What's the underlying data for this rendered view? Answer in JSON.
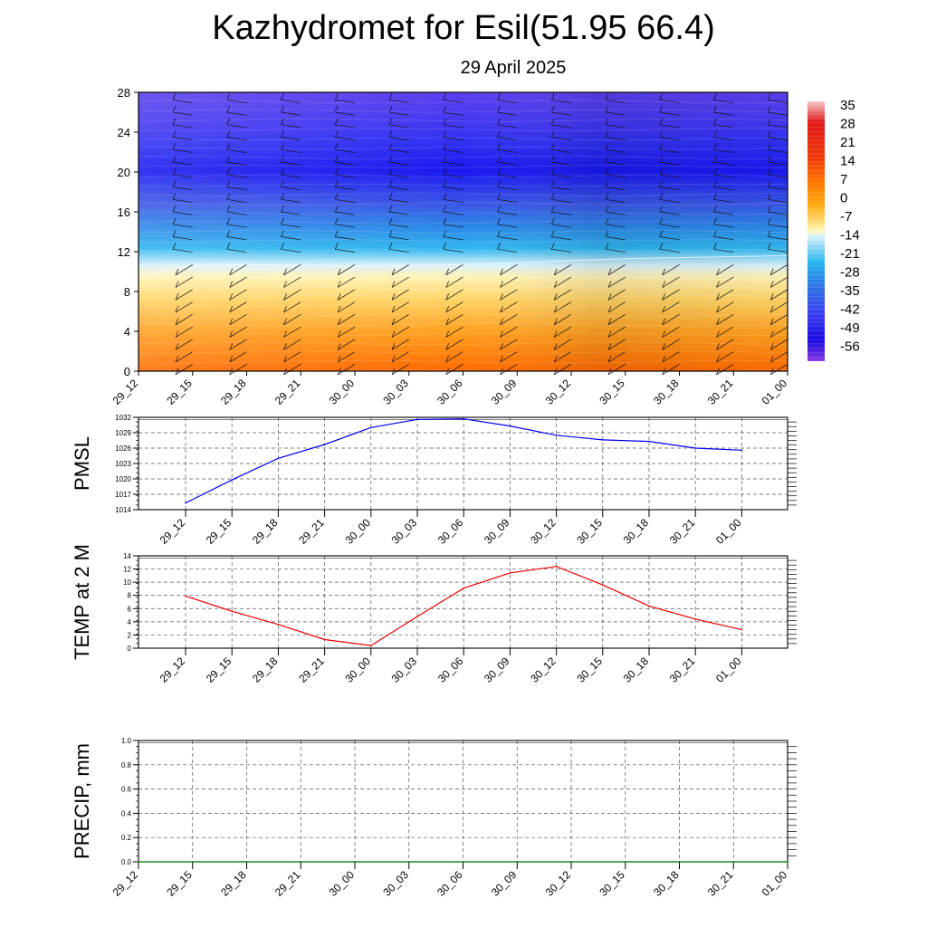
{
  "title": "Kazhydromet for Esil(51.95 66.4)",
  "subtitle": "29 April 2025",
  "colors": {
    "pmsl_line": "#0000ee",
    "temp_line": "#ee0000",
    "precip_line": "#008000",
    "grid": "#555555"
  },
  "chart_data": [
    {
      "type": "heatmap",
      "title": "",
      "ylabel": "",
      "ylim": [
        0,
        28
      ],
      "yticks": [
        0,
        4,
        8,
        12,
        16,
        20,
        24,
        28
      ],
      "x": [
        "29_12",
        "29_15",
        "29_18",
        "29_21",
        "30_00",
        "30_03",
        "30_06",
        "30_09",
        "30_12",
        "30_15",
        "30_18",
        "30_21",
        "01_00"
      ],
      "freezing_level": [
        9.6,
        10.6,
        10.7,
        10.6,
        10.5,
        10.6,
        10.7,
        10.9,
        11.1,
        11.3,
        11.4,
        11.5,
        11.6
      ],
      "colorbar": {
        "labels": [
          "35",
          "28",
          "21",
          "14",
          "7",
          "0",
          "-7",
          "-14",
          "-21",
          "-28",
          "-35",
          "-42",
          "-49",
          "-56"
        ],
        "stops": [
          "#f9c6c6",
          "#e71a1a",
          "#f03a0a",
          "#ff6a00",
          "#ffa50a",
          "#ffd060",
          "#fff6c0",
          "#d8f0fa",
          "#29b8ef",
          "#2e7ee8",
          "#3b52e8",
          "#2a1ef0",
          "#1a08e0",
          "#8a2be2"
        ]
      },
      "grid": false
    },
    {
      "type": "line",
      "ylabel": "PMSL",
      "ylim": [
        1014,
        1032
      ],
      "yticks": [
        1014,
        1017,
        1020,
        1023,
        1026,
        1029,
        1032
      ],
      "x": [
        "29_12",
        "29_15",
        "29_18",
        "29_21",
        "30_00",
        "30_03",
        "30_06",
        "30_09",
        "30_12",
        "30_15",
        "30_18",
        "30_21",
        "01_00"
      ],
      "values": [
        1015.3,
        1019.8,
        1024.0,
        1026.7,
        1030.0,
        1031.6,
        1031.7,
        1030.3,
        1028.5,
        1027.6,
        1027.3,
        1026.0,
        1025.6
      ],
      "grid": true
    },
    {
      "type": "line",
      "ylabel": "TEMP at 2 M",
      "ylim": [
        0,
        14
      ],
      "yticks": [
        0,
        2,
        4,
        6,
        8,
        10,
        12,
        14
      ],
      "x": [
        "29_12",
        "29_15",
        "29_18",
        "29_21",
        "30_00",
        "30_03",
        "30_06",
        "30_09",
        "30_12",
        "30_15",
        "30_18",
        "30_21",
        "01_00"
      ],
      "values": [
        7.9,
        5.6,
        3.6,
        1.3,
        0.4,
        4.8,
        9.1,
        11.4,
        12.4,
        9.6,
        6.4,
        4.4,
        2.8
      ],
      "grid": true
    },
    {
      "type": "line",
      "ylabel": "PRECIP, mm",
      "ylim": [
        0,
        1
      ],
      "yticks": [
        "0.0",
        "0.2",
        "0.4",
        "0.6",
        "0.8",
        "1.0"
      ],
      "x": [
        "29_12",
        "29_15",
        "29_18",
        "29_21",
        "30_00",
        "30_03",
        "30_06",
        "30_09",
        "30_12",
        "30_15",
        "30_18",
        "30_21",
        "01_00"
      ],
      "values": [
        0,
        0,
        0,
        0,
        0,
        0,
        0,
        0,
        0,
        0,
        0,
        0,
        0
      ],
      "grid": true
    }
  ]
}
